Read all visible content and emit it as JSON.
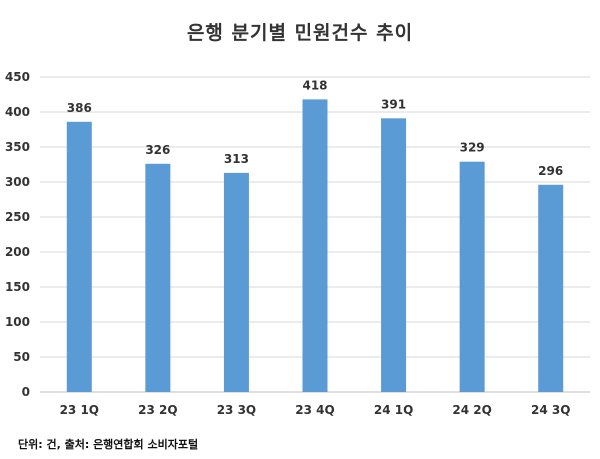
{
  "chart_data": {
    "type": "bar",
    "title": "은행 분기별 민원건수 추이",
    "categories": [
      "23 1Q",
      "23 2Q",
      "23 3Q",
      "23 4Q",
      "24 1Q",
      "24 2Q",
      "24 3Q"
    ],
    "series": [
      {
        "values": [
          386,
          326,
          313,
          418,
          391,
          329,
          296
        ]
      }
    ],
    "ylim": [
      0,
      450
    ],
    "yticks": [
      0,
      50,
      100,
      150,
      200,
      250,
      300,
      350,
      400,
      450
    ],
    "grid": true,
    "legend": "none",
    "data_labels": true,
    "bar_color": "#5B9BD5"
  },
  "footnote": "단위: 건, 출처: 은행연합회 소비자포털"
}
